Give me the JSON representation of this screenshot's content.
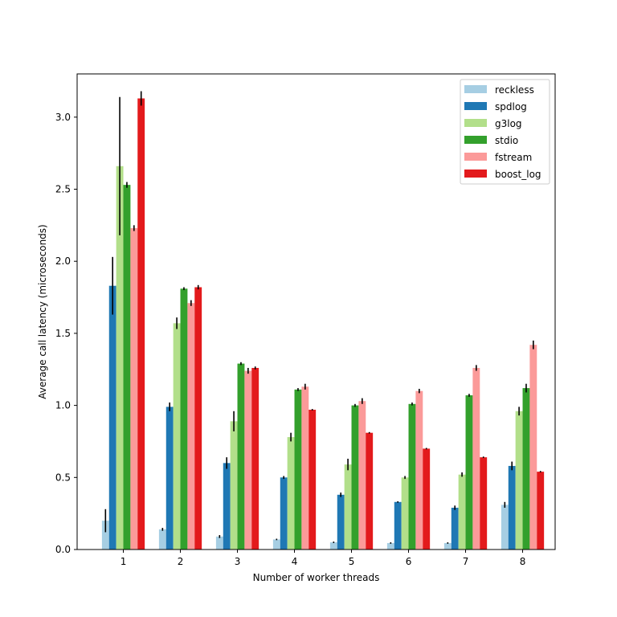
{
  "chart_data": {
    "type": "bar",
    "xlabel": "Number of worker threads",
    "ylabel": "Average call latency (microseconds)",
    "categories": [
      "1",
      "2",
      "3",
      "4",
      "5",
      "6",
      "7",
      "8"
    ],
    "ylim": [
      0,
      3.3
    ],
    "yticks": [
      "0.0",
      "0.5",
      "1.0",
      "1.5",
      "2.0",
      "2.5",
      "3.0"
    ],
    "grid": false,
    "legend_position": "top-right",
    "series": [
      {
        "name": "reckless",
        "color": "#a6cee3",
        "values": [
          0.2,
          0.14,
          0.09,
          0.07,
          0.05,
          0.045,
          0.045,
          0.31
        ],
        "errors": [
          0.08,
          0.01,
          0.01,
          0.005,
          0.005,
          0.005,
          0.005,
          0.02
        ]
      },
      {
        "name": "spdlog",
        "color": "#1f78b4",
        "values": [
          1.83,
          0.99,
          0.6,
          0.5,
          0.38,
          0.33,
          0.29,
          0.58
        ],
        "errors": [
          0.2,
          0.03,
          0.04,
          0.01,
          0.015,
          0.005,
          0.015,
          0.03
        ]
      },
      {
        "name": "g3log",
        "color": "#b2df8a",
        "values": [
          2.66,
          1.57,
          0.89,
          0.78,
          0.59,
          0.5,
          0.52,
          0.96
        ],
        "errors": [
          0.48,
          0.04,
          0.07,
          0.03,
          0.04,
          0.01,
          0.015,
          0.03
        ]
      },
      {
        "name": "stdio",
        "color": "#33a02c",
        "values": [
          2.53,
          1.81,
          1.29,
          1.11,
          1.0,
          1.01,
          1.07,
          1.12
        ],
        "errors": [
          0.02,
          0.01,
          0.01,
          0.01,
          0.01,
          0.01,
          0.01,
          0.03
        ]
      },
      {
        "name": "fstream",
        "color": "#fb9a99",
        "values": [
          2.23,
          1.71,
          1.24,
          1.13,
          1.03,
          1.1,
          1.26,
          1.42
        ],
        "errors": [
          0.02,
          0.02,
          0.02,
          0.02,
          0.02,
          0.015,
          0.02,
          0.03
        ]
      },
      {
        "name": "boost_log",
        "color": "#e31a1c",
        "values": [
          3.13,
          1.82,
          1.26,
          0.97,
          0.81,
          0.7,
          0.64,
          0.54
        ],
        "errors": [
          0.05,
          0.015,
          0.01,
          0.005,
          0.005,
          0.005,
          0.005,
          0.005
        ]
      }
    ]
  }
}
